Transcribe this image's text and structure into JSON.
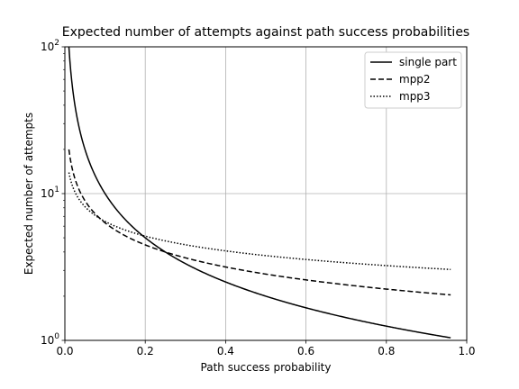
{
  "chart_data": {
    "type": "line",
    "title": "Expected number of attempts against path success probabilities",
    "xlabel": "Path success probability",
    "ylabel": "Expected number of attempts",
    "xlim": [
      0.0,
      1.0
    ],
    "ylim": [
      1,
      100
    ],
    "yscale": "log",
    "grid": true,
    "legend_position": "top-right",
    "x_ticks": [
      "0.0",
      "0.2",
      "0.4",
      "0.6",
      "0.8",
      "1.0"
    ],
    "y_ticks": [
      {
        "base": "10",
        "exp": "0"
      },
      {
        "base": "10",
        "exp": "1"
      },
      {
        "base": "10",
        "exp": "2"
      }
    ],
    "x_range": [
      0.01,
      0.96
    ],
    "series": [
      {
        "name": "single part",
        "style": "solid",
        "formula": "1/p",
        "samples": {
          "x": [
            0.01,
            0.05,
            0.1,
            0.2,
            0.4,
            0.6,
            0.8,
            0.96
          ],
          "y": [
            100,
            20,
            10,
            5,
            2.5,
            1.67,
            1.25,
            1.04
          ]
        }
      },
      {
        "name": "mpp2",
        "style": "dashed",
        "formula": "2/sqrt(p)",
        "samples": {
          "x": [
            0.01,
            0.05,
            0.1,
            0.2,
            0.4,
            0.6,
            0.8,
            0.96
          ],
          "y": [
            20,
            8.94,
            6.32,
            4.47,
            3.16,
            2.58,
            2.24,
            2.04
          ]
        }
      },
      {
        "name": "mpp3",
        "style": "dotted",
        "formula": "3/cbrt(p)",
        "samples": {
          "x": [
            0.01,
            0.05,
            0.1,
            0.2,
            0.4,
            0.6,
            0.8,
            0.96
          ],
          "y": [
            13.9,
            8.14,
            6.46,
            5.13,
            4.07,
            3.56,
            3.23,
            3.04
          ]
        }
      }
    ]
  }
}
